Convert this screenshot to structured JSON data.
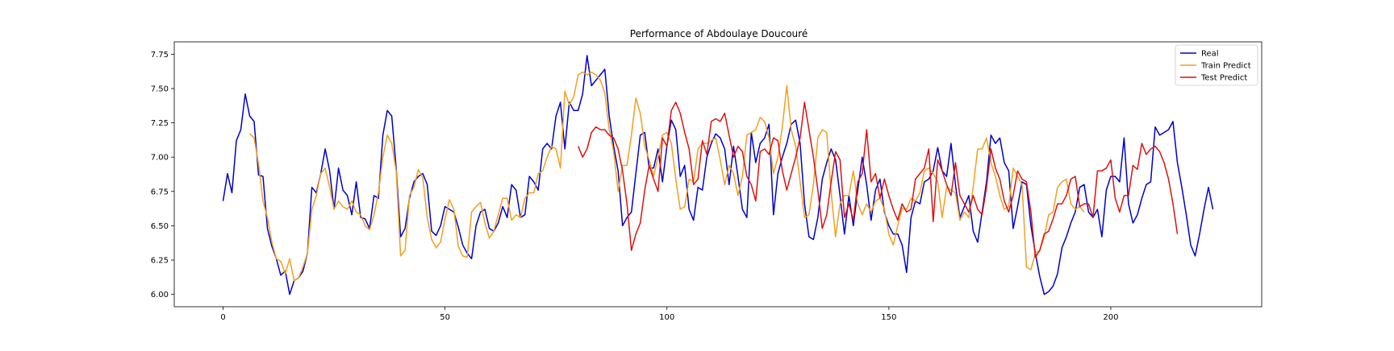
{
  "chart_data": {
    "type": "line",
    "title": "Performance of Abdoulaye Doucouré",
    "xlabel": "",
    "ylabel": "",
    "xlim": [
      -11,
      234
    ],
    "ylim": [
      5.91,
      7.84
    ],
    "xticks": [
      0,
      50,
      100,
      150,
      200
    ],
    "yticks": [
      6.0,
      6.25,
      6.5,
      6.75,
      7.0,
      7.25,
      7.5,
      7.75
    ],
    "grid": false,
    "legend_position": "top-right",
    "series": [
      {
        "name": "Real",
        "color": "#0000cc",
        "x_start": 0,
        "values": [
          6.68,
          6.88,
          6.74,
          7.12,
          7.2,
          7.46,
          7.3,
          7.26,
          6.87,
          6.86,
          6.48,
          6.35,
          6.26,
          6.14,
          6.17,
          6.0,
          6.1,
          6.12,
          6.17,
          6.3,
          6.78,
          6.74,
          6.88,
          7.06,
          6.9,
          6.62,
          6.92,
          6.76,
          6.72,
          6.58,
          6.82,
          6.56,
          6.55,
          6.48,
          6.72,
          6.7,
          7.16,
          7.34,
          7.3,
          6.92,
          6.42,
          6.48,
          6.7,
          6.82,
          6.86,
          6.88,
          6.8,
          6.46,
          6.43,
          6.5,
          6.64,
          6.62,
          6.6,
          6.49,
          6.36,
          6.3,
          6.26,
          6.5,
          6.6,
          6.62,
          6.48,
          6.46,
          6.52,
          6.64,
          6.56,
          6.8,
          6.76,
          6.56,
          6.58,
          6.86,
          6.82,
          6.76,
          7.06,
          7.1,
          7.06,
          7.3,
          7.4,
          7.06,
          7.4,
          7.34,
          7.34,
          7.46,
          7.74,
          7.52,
          7.56,
          7.6,
          7.64,
          7.3,
          7.08,
          6.9,
          6.5,
          6.56,
          6.6,
          6.88,
          7.16,
          7.18,
          6.92,
          6.92,
          7.06,
          6.82,
          7.08,
          7.27,
          7.2,
          6.86,
          6.94,
          6.62,
          6.54,
          6.78,
          6.76,
          7.0,
          7.1,
          7.17,
          7.14,
          7.06,
          6.8,
          7.08,
          6.86,
          6.62,
          6.56,
          7.18,
          6.96,
          7.1,
          7.14,
          7.24,
          6.58,
          6.88,
          7.0,
          7.1,
          7.24,
          7.27,
          7.1,
          6.66,
          6.42,
          6.4,
          6.56,
          6.84,
          6.96,
          7.06,
          6.98,
          6.72,
          6.44,
          6.72,
          6.5,
          6.76,
          7.0,
          6.8,
          6.54,
          6.76,
          6.84,
          6.6,
          6.5,
          6.44,
          6.44,
          6.36,
          6.16,
          6.56,
          6.68,
          6.66,
          6.82,
          6.84,
          6.9,
          7.07,
          6.9,
          6.86,
          7.1,
          6.8,
          6.56,
          6.64,
          6.72,
          6.46,
          6.38,
          6.6,
          6.82,
          7.16,
          7.1,
          7.14,
          6.96,
          6.9,
          6.48,
          6.64,
          6.82,
          6.8,
          6.5,
          6.3,
          6.13,
          6.0,
          6.02,
          6.06,
          6.15,
          6.34,
          6.42,
          6.52,
          6.6,
          6.78,
          6.8,
          6.6,
          6.56,
          6.62,
          6.42,
          6.76,
          6.86,
          6.86,
          6.82,
          7.14,
          6.66,
          6.52,
          6.58,
          6.7,
          6.8,
          6.82,
          7.22,
          7.16,
          7.18,
          7.2,
          7.26,
          6.96,
          6.78,
          6.58,
          6.36,
          6.28,
          6.44,
          6.62,
          6.78,
          6.62
        ]
      },
      {
        "name": "Train Predict",
        "color": "#f0a020",
        "x_start": 6,
        "values": [
          7.17,
          7.14,
          6.95,
          6.68,
          6.56,
          6.38,
          6.26,
          6.24,
          6.15,
          6.26,
          6.1,
          6.12,
          6.2,
          6.3,
          6.62,
          6.72,
          6.88,
          6.92,
          6.78,
          6.62,
          6.68,
          6.64,
          6.62,
          6.68,
          6.6,
          6.58,
          6.5,
          6.47,
          6.58,
          6.74,
          7.0,
          7.16,
          7.1,
          6.9,
          6.28,
          6.32,
          6.72,
          6.78,
          6.91,
          6.85,
          6.56,
          6.4,
          6.34,
          6.38,
          6.55,
          6.69,
          6.62,
          6.35,
          6.28,
          6.27,
          6.6,
          6.64,
          6.67,
          6.52,
          6.41,
          6.46,
          6.58,
          6.7,
          6.7,
          6.54,
          6.58,
          6.56,
          6.7,
          6.74,
          6.74,
          6.88,
          6.9,
          7.0,
          7.08,
          7.06,
          6.92,
          7.48,
          7.38,
          7.44,
          7.6,
          7.62,
          7.6,
          7.62,
          7.6,
          7.56,
          7.47,
          7.2,
          7.04,
          6.75,
          6.94,
          6.94,
          7.16,
          7.43,
          7.32,
          7.08,
          6.98,
          6.86,
          7.0,
          7.16,
          7.18,
          7.1,
          6.84,
          6.62,
          6.64,
          6.84,
          6.82,
          7.06,
          7.1,
          7.1,
          7.12,
          7.14,
          6.98,
          6.8,
          6.94,
          6.88,
          6.72,
          6.86,
          7.16,
          7.18,
          7.2,
          7.29,
          7.26,
          7.14,
          6.88,
          7.0,
          7.22,
          7.52,
          7.2,
          7.08,
          6.82,
          6.56,
          6.58,
          6.8,
          7.14,
          7.2,
          7.18,
          6.74,
          6.42,
          6.66,
          6.72,
          6.72,
          6.9,
          6.66,
          6.58,
          6.66,
          6.6,
          6.68,
          6.7,
          6.62,
          6.44,
          6.36,
          6.5,
          6.63,
          6.62,
          6.7,
          6.68,
          6.74,
          6.9,
          6.92,
          6.88,
          6.82,
          6.56,
          6.78,
          6.76,
          6.74,
          6.54,
          6.6,
          6.56,
          6.78,
          7.06,
          7.06,
          7.14,
          6.96,
          6.86,
          6.72,
          6.62,
          6.64,
          6.92,
          6.86,
          6.8,
          6.2,
          6.18,
          6.3,
          6.32,
          6.42,
          6.58,
          6.6,
          6.78,
          6.82,
          6.84,
          6.66,
          6.62,
          6.64,
          6.6
        ]
      },
      {
        "name": "Test Predict",
        "color": "#dd1111",
        "x_start": 80,
        "values": [
          7.08,
          7.0,
          7.06,
          7.18,
          7.22,
          7.2,
          7.2,
          7.16,
          7.14,
          7.06,
          6.9,
          6.66,
          6.32,
          6.44,
          6.52,
          6.76,
          6.94,
          6.84,
          6.75,
          7.14,
          7.08,
          7.34,
          7.4,
          7.32,
          7.18,
          7.06,
          6.8,
          6.84,
          7.12,
          7.02,
          7.26,
          7.28,
          7.26,
          7.32,
          7.16,
          7.0,
          7.08,
          7.04,
          6.86,
          6.8,
          6.68,
          7.04,
          7.06,
          7.02,
          7.14,
          7.12,
          6.9,
          6.76,
          6.88,
          7.0,
          7.14,
          7.4,
          7.2,
          7.0,
          6.76,
          6.48,
          6.58,
          6.82,
          7.04,
          6.98,
          6.56,
          6.66,
          6.54,
          6.82,
          6.88,
          7.2,
          6.82,
          6.88,
          6.7,
          6.84,
          6.72,
          6.62,
          6.54,
          6.66,
          6.6,
          6.62,
          6.84,
          6.88,
          6.92,
          7.06,
          6.53,
          6.98,
          6.9,
          6.8,
          6.72,
          6.96,
          6.72,
          6.66,
          6.6,
          6.72,
          6.62,
          6.58,
          6.78,
          7.06,
          6.92,
          6.84,
          6.68,
          6.6,
          6.72,
          6.9,
          6.84,
          6.82,
          6.6,
          6.27,
          6.32,
          6.44,
          6.46,
          6.55,
          6.66,
          6.66,
          6.72,
          6.84,
          6.86,
          6.64,
          6.66,
          6.66,
          6.56,
          6.9,
          6.9,
          6.92,
          6.98,
          6.7,
          6.6,
          6.72,
          6.72,
          6.94,
          6.91,
          7.1,
          7.02,
          7.06,
          7.08,
          7.04,
          6.96,
          6.84,
          6.66,
          6.44
        ]
      }
    ]
  }
}
